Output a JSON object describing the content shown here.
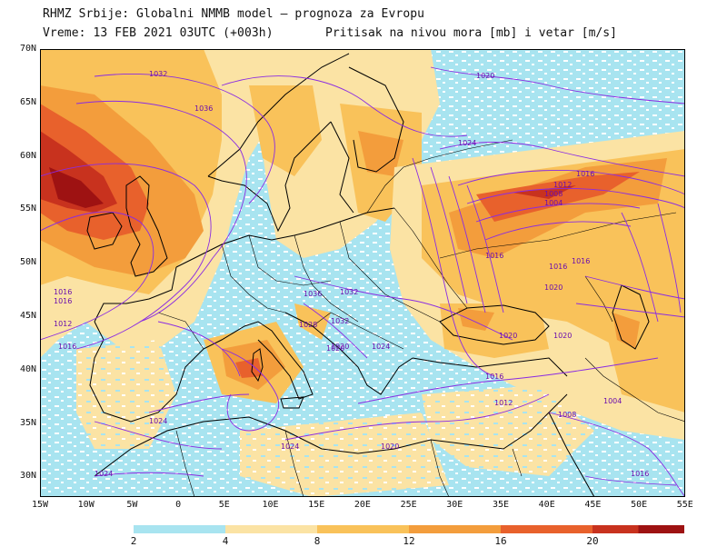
{
  "header": {
    "line1": "RHMZ Srbije: Globalni NMMB model – prognoza za Evropu",
    "line2": "Vreme: 13 FEB 2021 03UTC (+003h)",
    "line2_right": "Pritisak na nivou mora [mb] i vetar [m/s]"
  },
  "axes": {
    "lat_labels": [
      "70N",
      "65N",
      "60N",
      "55N",
      "50N",
      "45N",
      "40N",
      "35N",
      "30N"
    ],
    "lon_labels": [
      "15W",
      "10W",
      "5W",
      "0",
      "5E",
      "10E",
      "15E",
      "20E",
      "25E",
      "30E",
      "35E",
      "40E",
      "45E",
      "50E",
      "55E"
    ]
  },
  "colorbar": {
    "labels": [
      "2",
      "4",
      "8",
      "12",
      "16",
      "20"
    ],
    "colors": [
      "#a8e4f0",
      "#fbe3a4",
      "#f9c25a",
      "#f39d3c",
      "#e8612c",
      "#c8321e",
      "#9e1212"
    ]
  },
  "isobar_labels": [
    "1032",
    "1036",
    "1020",
    "1024",
    "1016",
    "1012",
    "1008",
    "1004",
    "1036",
    "1028",
    "1032",
    "1020",
    "1024",
    "1016",
    "1012",
    "1008",
    "1004",
    "1016",
    "1024",
    "1020",
    "1024",
    "1020",
    "1016",
    "1016",
    "1020",
    "1016",
    "1024",
    "1020",
    "1016",
    "1012",
    "1016",
    "1016",
    "1020",
    "1032"
  ],
  "colors": {
    "ocean_wind_low": "#ffffff",
    "isobar": "#8a2be2",
    "coast": "#000000"
  }
}
